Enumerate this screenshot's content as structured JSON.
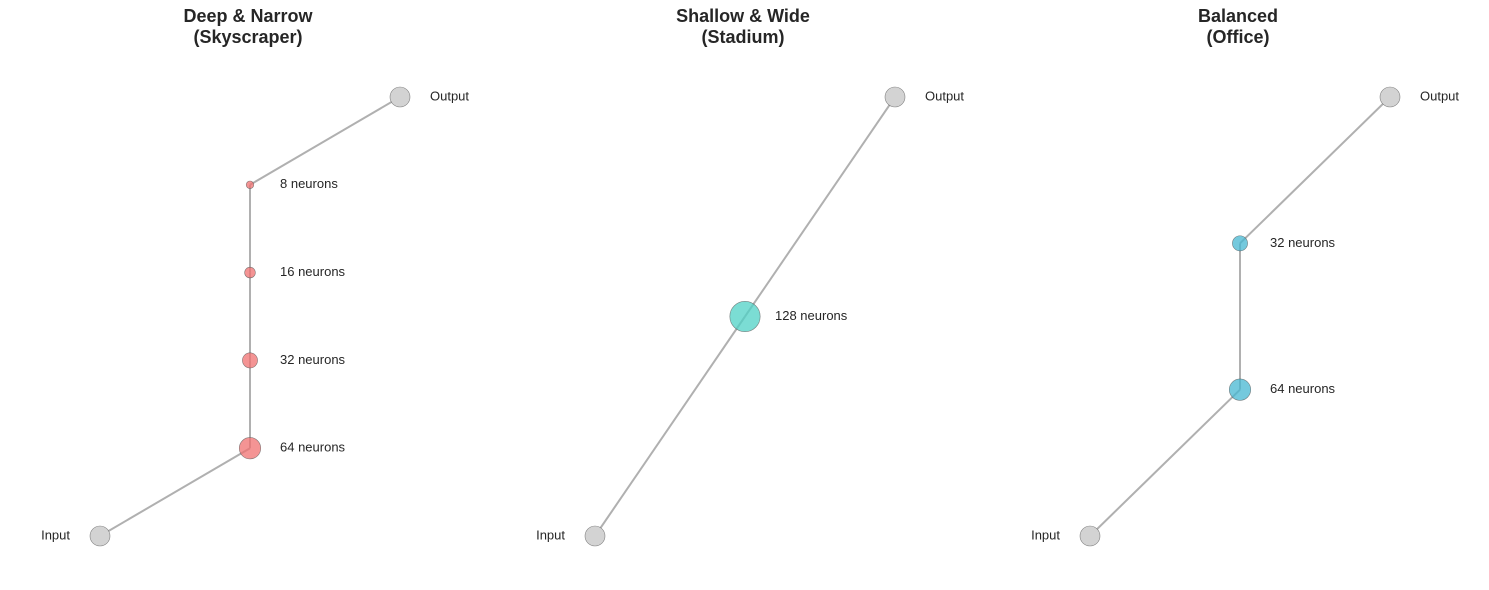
{
  "panels": [
    {
      "title": "Deep & Narrow\n(Skyscraper)",
      "layers": [
        {
          "label": "Input",
          "kind": "io"
        },
        {
          "label": "64 neurons",
          "neurons": 64
        },
        {
          "label": "32 neurons",
          "neurons": 32
        },
        {
          "label": "16 neurons",
          "neurons": 16
        },
        {
          "label": "8 neurons",
          "neurons": 8
        },
        {
          "label": "Output",
          "kind": "io"
        }
      ],
      "color": "#f07070"
    },
    {
      "title": "Shallow & Wide\n(Stadium)",
      "layers": [
        {
          "label": "Input",
          "kind": "io"
        },
        {
          "label": "128 neurons",
          "neurons": 128
        },
        {
          "label": "Output",
          "kind": "io"
        }
      ],
      "color": "#4fd1c5"
    },
    {
      "title": "Balanced\n(Office)",
      "layers": [
        {
          "label": "Input",
          "kind": "io"
        },
        {
          "label": "64 neurons",
          "neurons": 64
        },
        {
          "label": "32 neurons",
          "neurons": 32
        },
        {
          "label": "Output",
          "kind": "io"
        }
      ],
      "color": "#45b7d1"
    }
  ],
  "colors": {
    "io_fill": "#d3d3d3",
    "edge": "#b0b0b0",
    "outline": "#555555"
  }
}
